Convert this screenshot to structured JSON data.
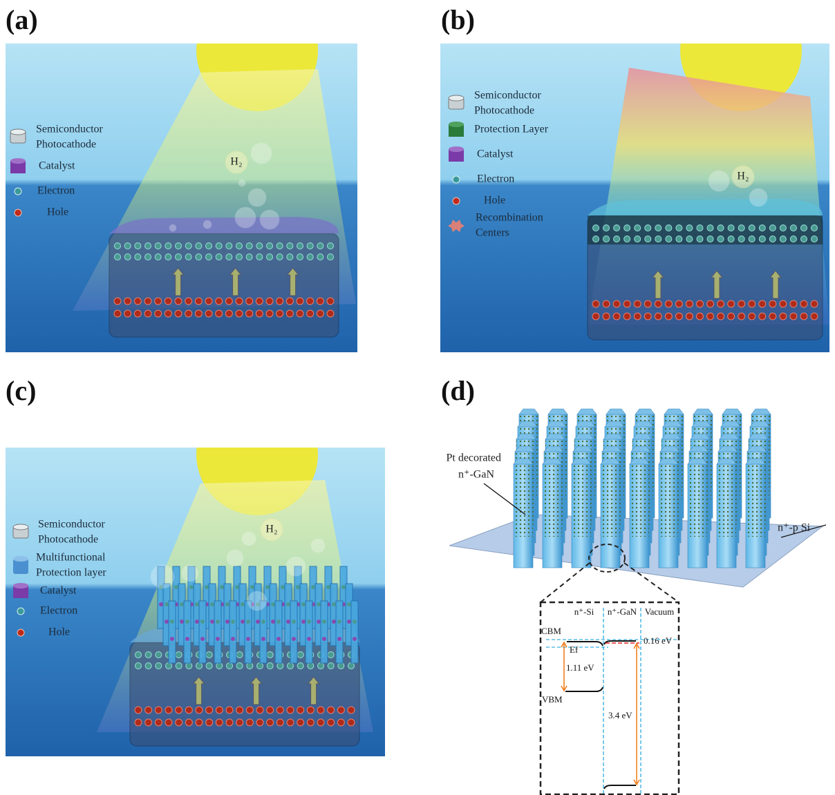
{
  "panels": [
    {
      "label": "(a)",
      "h2": "H₂",
      "legend": [
        {
          "lines": [
            "Semiconductor",
            "Photocathode"
          ]
        },
        {
          "lines": [
            "Catalyst"
          ]
        },
        {
          "lines": [
            "Electron"
          ]
        },
        {
          "lines": [
            "Hole"
          ]
        }
      ]
    },
    {
      "label": "(b)",
      "h2": "H₂",
      "legend": [
        {
          "lines": [
            "Semiconductor",
            "Photocathode"
          ]
        },
        {
          "lines": [
            "Protection Layer"
          ]
        },
        {
          "lines": [
            "Catalyst"
          ]
        },
        {
          "lines": [
            "Electron"
          ]
        },
        {
          "lines": [
            "Hole"
          ]
        },
        {
          "lines": [
            "Recombination",
            "Centers"
          ]
        }
      ]
    },
    {
      "label": "(c)",
      "h2": "H₂",
      "legend": [
        {
          "lines": [
            "Semiconductor",
            "Photocathode"
          ]
        },
        {
          "lines": [
            "Multifunctional",
            "Protection layer"
          ]
        },
        {
          "lines": [
            "Catalyst"
          ]
        },
        {
          "lines": [
            "Electron"
          ]
        },
        {
          "lines": [
            "Hole"
          ]
        }
      ]
    },
    {
      "label": "(d)",
      "wire_label": [
        "Pt decorated",
        "n⁺-GaN"
      ],
      "substrate_label": "n⁺-p Si",
      "band": {
        "columns": [
          "n⁺-Si",
          "n⁺-GaN",
          "Vacuum"
        ],
        "cbm": "CBM",
        "vbm": "VBM",
        "ef": "Ef",
        "gap_si": "1.11 eV",
        "gap_gan": "3.4 eV",
        "offset": "0.16 eV"
      }
    }
  ]
}
